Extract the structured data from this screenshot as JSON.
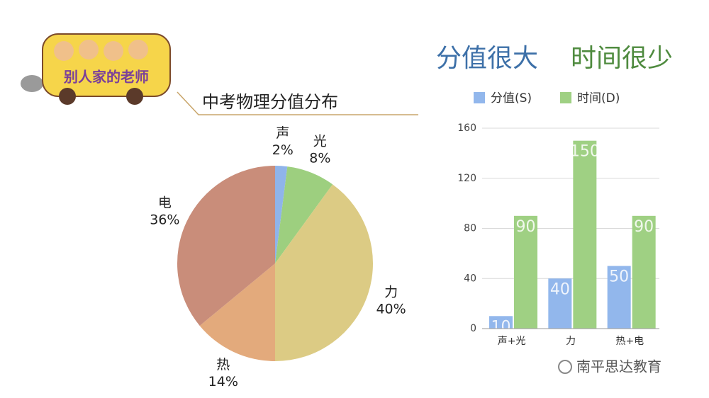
{
  "logo_text": "别人家的老师",
  "headline": [
    "分值很大",
    "时间很少"
  ],
  "watermark": "南平思达教育",
  "chart_data": [
    {
      "type": "pie",
      "title": "中考物理分值分布",
      "categories": [
        "声",
        "光",
        "力",
        "热",
        "电"
      ],
      "values": [
        2,
        8,
        40,
        14,
        36
      ],
      "value_labels": [
        "2%",
        "8%",
        "40%",
        "14%",
        "36%"
      ],
      "colors": [
        "#8fb4ea",
        "#9dcf7f",
        "#dccb84",
        "#e3aa7c",
        "#c98d7a"
      ]
    },
    {
      "type": "bar",
      "categories": [
        "声+光",
        "力",
        "热+电"
      ],
      "series": [
        {
          "name": "分值(S)",
          "color": "#92b7ec",
          "values": [
            10,
            40,
            50
          ]
        },
        {
          "name": "时间(D)",
          "color": "#9fd083",
          "values": [
            90,
            150,
            90
          ]
        }
      ],
      "ylim": [
        0,
        160
      ],
      "yticks": [
        0,
        40,
        80,
        120,
        160
      ],
      "grid": true
    }
  ]
}
